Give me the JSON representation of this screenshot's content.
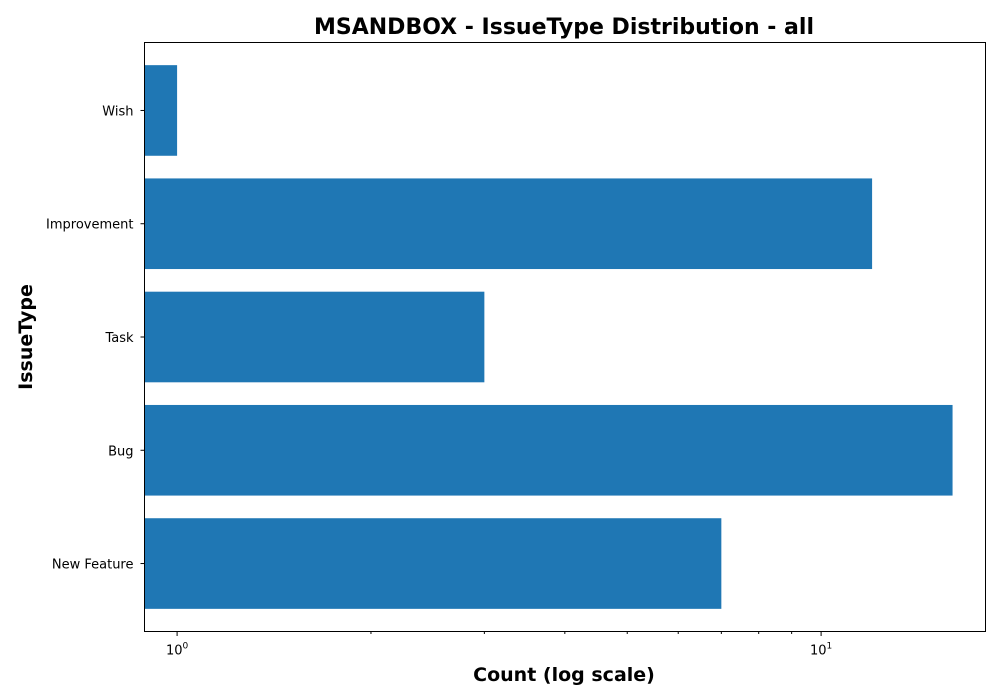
{
  "chart_data": {
    "type": "bar",
    "orientation": "horizontal",
    "title": "MSANDBOX - IssueType Distribution - all",
    "xlabel": "Count (log scale)",
    "ylabel": "IssueType",
    "x_scale": "log",
    "xlim": [
      0.89,
      18
    ],
    "categories": [
      "New Feature",
      "Bug",
      "Task",
      "Improvement",
      "Wish"
    ],
    "values": [
      7,
      16,
      3,
      12,
      1
    ],
    "x_major_ticks": [
      {
        "value": 1,
        "base": "10",
        "exp": "0"
      },
      {
        "value": 10,
        "base": "10",
        "exp": "1"
      }
    ],
    "x_minor_ticks": [
      2,
      3,
      4,
      5,
      6,
      7,
      8,
      9
    ],
    "bar_color": "#1f77b4",
    "grid": false,
    "legend": "none"
  }
}
